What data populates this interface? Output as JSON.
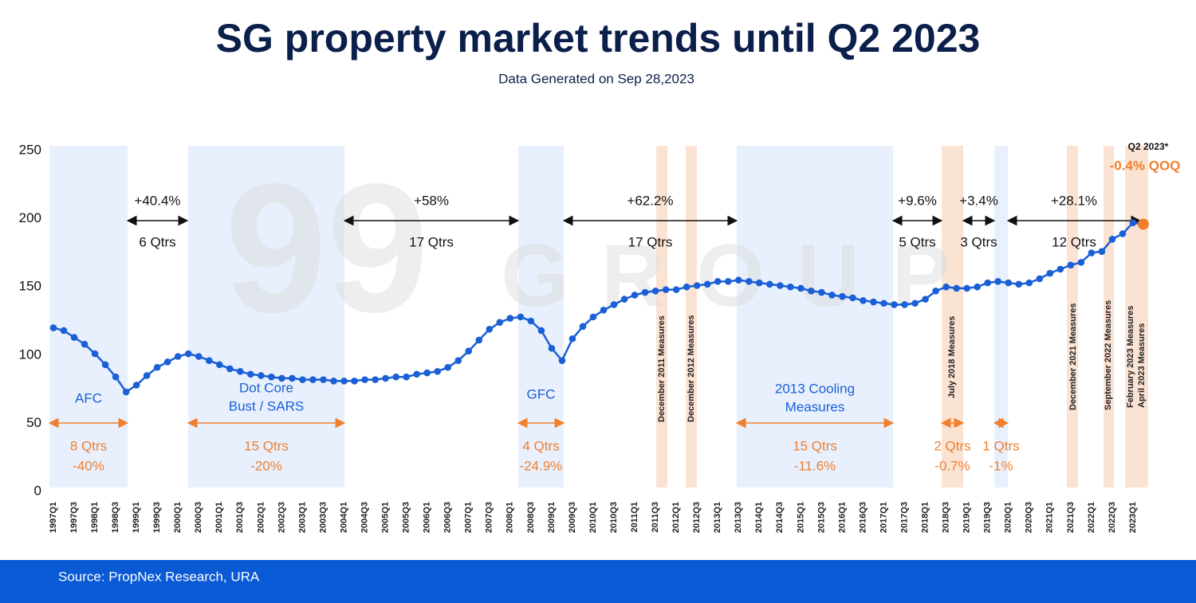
{
  "chart_data": {
    "type": "line",
    "title": "SG property market trends until Q2 2023",
    "subtitle": "Data Generated on Sep 28,2023",
    "source": "Source: PropNex Research, URA",
    "watermark": [
      "99",
      "GROUP"
    ],
    "color": "#1a5fd6",
    "last_point_color": "#f07f2e",
    "last_point_label": "Q2 2023*",
    "last_point_change": "-0.4% QOQ",
    "ylim": [
      0,
      250
    ],
    "yticks": [
      0,
      50,
      100,
      150,
      200,
      250
    ],
    "grid": false,
    "categories": [
      "1997Q1",
      null,
      "1997Q3",
      null,
      "1998Q1",
      null,
      "1998Q3",
      null,
      "1999Q1",
      null,
      "1999Q3",
      null,
      "2000Q1",
      null,
      "2000Q3",
      null,
      "2001Q1",
      null,
      "2001Q3",
      null,
      "2002Q1",
      null,
      "2002Q3",
      null,
      "2003Q1",
      null,
      "2003Q3",
      null,
      "2004Q1",
      null,
      "2004Q3",
      null,
      "2005Q1",
      null,
      "2005Q3",
      null,
      "2006Q1",
      null,
      "2006Q3",
      null,
      "2007Q1",
      null,
      "2007Q3",
      null,
      "2008Q1",
      null,
      "2008Q3",
      null,
      "2009Q1",
      null,
      "2009Q3",
      null,
      "2010Q1",
      null,
      "2010Q3",
      null,
      "2011Q1",
      null,
      "2011Q3",
      null,
      "2012Q1",
      null,
      "2012Q3",
      null,
      "2013Q1",
      null,
      "2013Q3",
      null,
      "2014Q1",
      null,
      "2014Q3",
      null,
      "2015Q1",
      null,
      "2015Q3",
      null,
      "2016Q1",
      null,
      "2016Q3",
      null,
      "2017Q1",
      null,
      "2017Q3",
      null,
      "2018Q1",
      null,
      "2018Q3",
      null,
      "2019Q1",
      null,
      "2019Q3",
      null,
      "2020Q1",
      null,
      "2020Q3",
      null,
      "2021Q1",
      null,
      "2021Q3",
      null,
      "2022Q1",
      null,
      "2022Q3",
      null,
      "2023Q1",
      null
    ],
    "values": [
      120,
      118,
      113,
      108,
      101,
      93,
      84,
      73,
      78,
      85,
      91,
      95,
      99,
      101,
      99,
      96,
      93,
      90,
      88,
      86,
      85,
      84,
      83,
      83,
      82,
      82,
      82,
      81,
      81,
      81,
      82,
      82,
      83,
      84,
      84,
      86,
      87,
      88,
      91,
      96,
      103,
      111,
      119,
      124,
      127,
      128,
      125,
      118,
      105,
      96,
      112,
      121,
      128,
      133,
      137,
      141,
      144,
      146,
      147,
      148,
      148,
      150,
      151,
      152,
      154,
      154,
      155,
      154,
      153,
      152,
      151,
      150,
      149,
      147,
      146,
      144,
      143,
      142,
      140,
      139,
      138,
      137,
      137,
      138,
      141,
      147,
      150,
      149,
      149,
      150,
      153,
      154,
      153,
      152,
      153,
      156,
      160,
      163,
      166,
      168,
      175,
      176,
      185,
      189,
      197,
      196
    ],
    "periods": [
      {
        "label": [
          "AFC"
        ],
        "duration": "8 Qtrs",
        "change": "-40%"
      },
      {
        "label": [
          "Dot Core",
          "Bust / SARS"
        ],
        "duration": "15 Qtrs",
        "change": "-20%"
      },
      {
        "label": [
          "GFC"
        ],
        "duration": "4 Qtrs",
        "change": "-24.9%"
      },
      {
        "label": [
          "2013 Cooling",
          "Measures"
        ],
        "duration": "15 Qtrs",
        "change": "-11.6%"
      },
      {
        "label": [],
        "duration": "2 Qtrs",
        "change": "-0.7%"
      },
      {
        "label": [],
        "duration": "1 Qtrs",
        "change": "-1%"
      }
    ],
    "rallies": [
      {
        "change": "+40.4%",
        "duration": "6 Qtrs"
      },
      {
        "change": "+58%",
        "duration": "17 Qtrs"
      },
      {
        "change": "+62.2%",
        "duration": "17 Qtrs"
      },
      {
        "change": "+9.6%",
        "duration": "5 Qtrs"
      },
      {
        "change": "+3.4%",
        "duration": "3 Qtrs"
      },
      {
        "change": "+28.1%",
        "duration": "12 Qtrs"
      }
    ],
    "measures": [
      "December 2011 Measures",
      "December 2012 Measures",
      "July 2018 Measures",
      "December 2021 Measures",
      "September 2022 Measures",
      "February 2023 Measures",
      "April 2023 Measures"
    ]
  }
}
